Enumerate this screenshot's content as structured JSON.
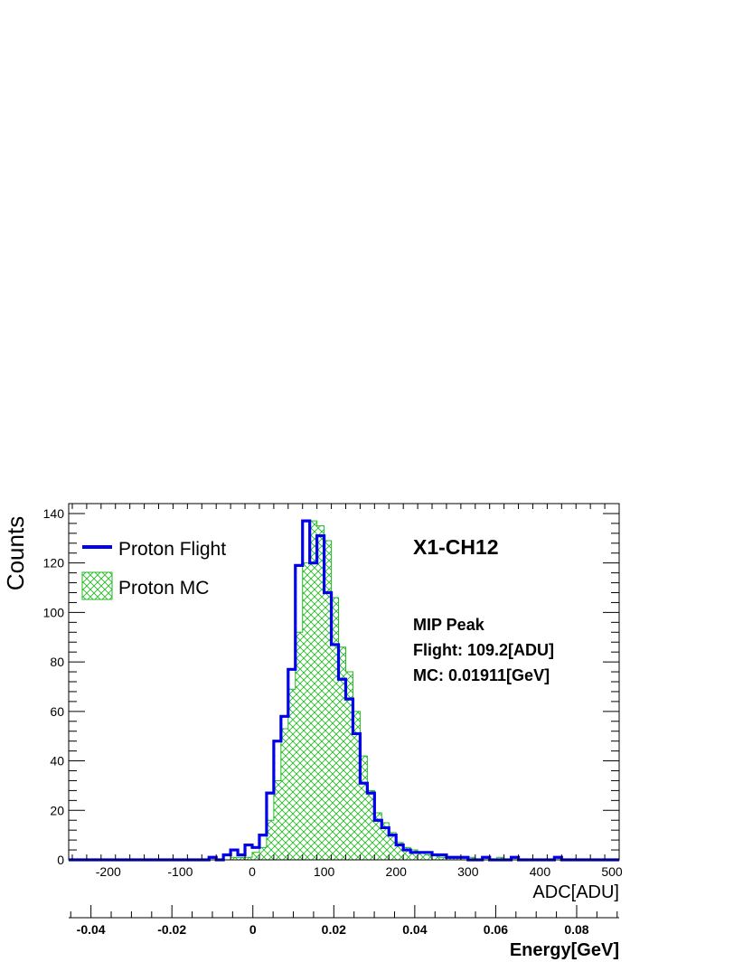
{
  "chart_data": {
    "type": "histogram",
    "ylabel": "Counts",
    "xlabel": "ADC[ADU]",
    "x2label": "Energy[GeV]",
    "xlim": [
      -255,
      510
    ],
    "ylim": [
      0,
      144
    ],
    "x2lim": [
      -0.0455,
      0.0905
    ],
    "xticks": [
      -200,
      -100,
      0,
      100,
      200,
      300,
      400,
      500
    ],
    "yticks": [
      0,
      20,
      40,
      60,
      80,
      100,
      120,
      140
    ],
    "x2ticks": [
      -0.04,
      -0.02,
      0,
      0.02,
      0.04,
      0.06,
      0.08
    ],
    "grid": false,
    "legend_position": "top-left",
    "bins": {
      "x": [
        -60,
        -50,
        -40,
        -30,
        -20,
        -10,
        0,
        10,
        20,
        30,
        40,
        50,
        60,
        70,
        80,
        90,
        100,
        110,
        120,
        130,
        140,
        150,
        160,
        170,
        180,
        190,
        200,
        210,
        220,
        230,
        240,
        250,
        260,
        270,
        280,
        290,
        300,
        310,
        320,
        330,
        340,
        350,
        360,
        370,
        380,
        390,
        400,
        410,
        420,
        430,
        440,
        450,
        460,
        470,
        480,
        490
      ],
      "width": 10
    },
    "series": [
      {
        "name": "Proton Flight",
        "style": "line",
        "color": "#0000ee",
        "values": [
          1,
          0,
          2,
          4,
          2,
          6,
          5,
          10,
          27,
          48,
          58,
          77,
          119,
          137,
          120,
          131,
          108,
          87,
          73,
          65,
          51,
          31,
          27,
          16,
          13,
          10,
          6,
          4,
          3,
          3,
          3,
          2,
          2,
          1,
          1,
          1,
          0,
          0,
          1,
          0,
          0,
          0,
          1,
          0,
          0,
          0,
          0,
          0,
          1,
          0,
          0,
          0,
          0,
          0,
          0,
          0
        ]
      },
      {
        "name": "Proton MC",
        "style": "hatched",
        "color": "#22bb22",
        "values": [
          0,
          0,
          0,
          1,
          1,
          1,
          3,
          5,
          16,
          32,
          53,
          69,
          92,
          120,
          137,
          135,
          129,
          106,
          86,
          76,
          60,
          42,
          28,
          19,
          15,
          11,
          7,
          5,
          4,
          3,
          2,
          2,
          1,
          1,
          1,
          0,
          1,
          0,
          0,
          0,
          1,
          0,
          0,
          0,
          0,
          0,
          0,
          0,
          0,
          0,
          0,
          0,
          0,
          0,
          0,
          0
        ]
      }
    ],
    "annotations": {
      "title": "X1-CH12",
      "peak_header": "MIP Peak",
      "flight_value": "Flight: 109.2[ADU]",
      "mc_value": "MC: 0.01911[GeV]"
    }
  }
}
